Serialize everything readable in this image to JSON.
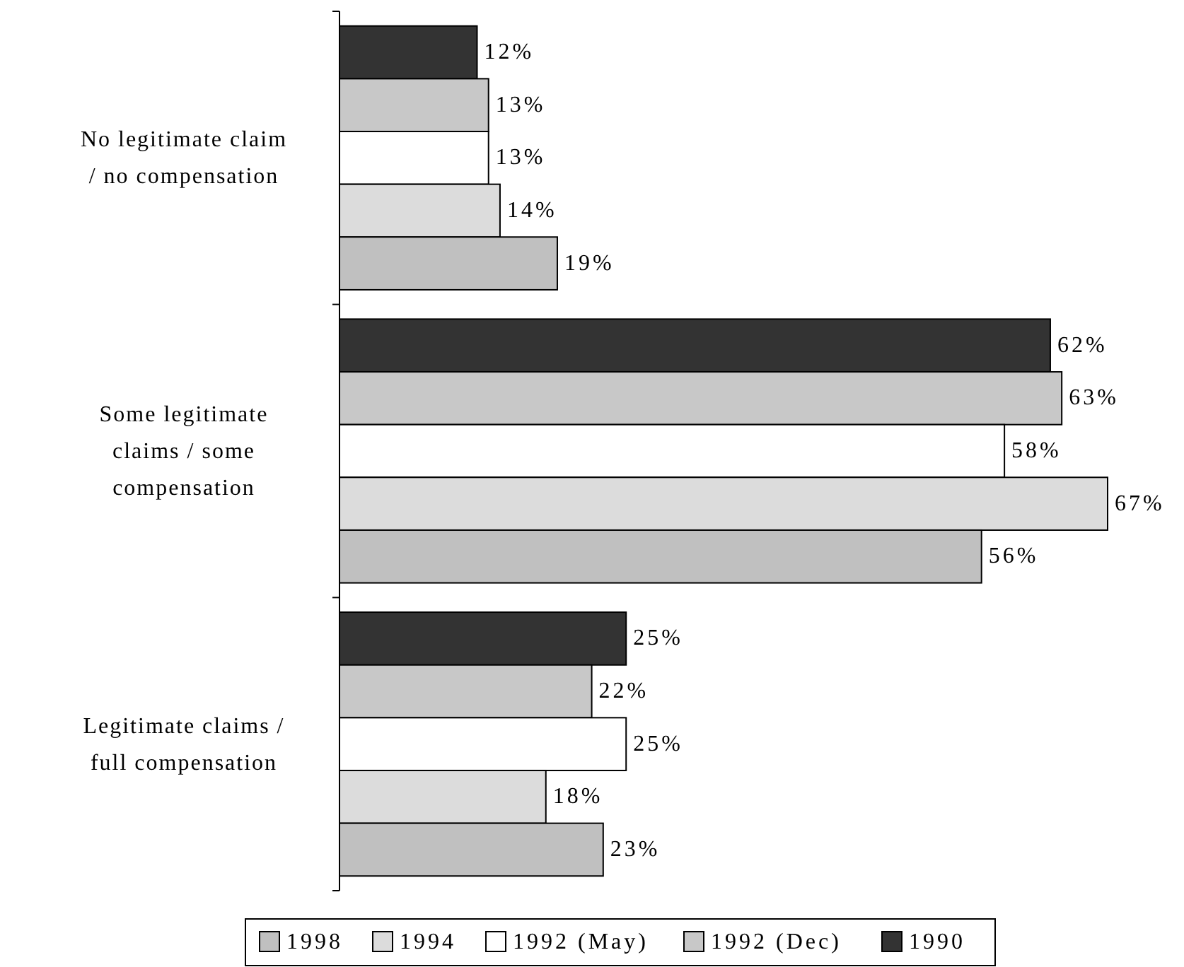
{
  "chart_data": {
    "type": "bar",
    "orientation": "horizontal",
    "categories": [
      "No legitimate claim / no compensation",
      "Some legitimate claims / some compensation",
      "Legitimate claims / full compensation"
    ],
    "series": [
      {
        "name": "1990",
        "color": "#333333",
        "values": [
          12,
          62,
          25
        ],
        "value_labels": [
          "12%",
          "62%",
          "25%"
        ]
      },
      {
        "name": "1992 (Dec)",
        "color": "#c8c8c8",
        "values": [
          13,
          63,
          22
        ],
        "value_labels": [
          "13%",
          "63%",
          "22%"
        ]
      },
      {
        "name": "1992 (May)",
        "color": "#ffffff",
        "values": [
          13,
          58,
          25
        ],
        "value_labels": [
          "13%",
          "58%",
          "25%"
        ]
      },
      {
        "name": "1994",
        "color": "#dcdcdc",
        "values": [
          14,
          67,
          18
        ],
        "value_labels": [
          "14%",
          "67%",
          "18%"
        ]
      },
      {
        "name": "1998",
        "color": "#c0c0c0",
        "values": [
          19,
          56,
          23
        ],
        "value_labels": [
          "19%",
          "56%",
          "23%"
        ]
      }
    ],
    "legend": "bottom"
  }
}
